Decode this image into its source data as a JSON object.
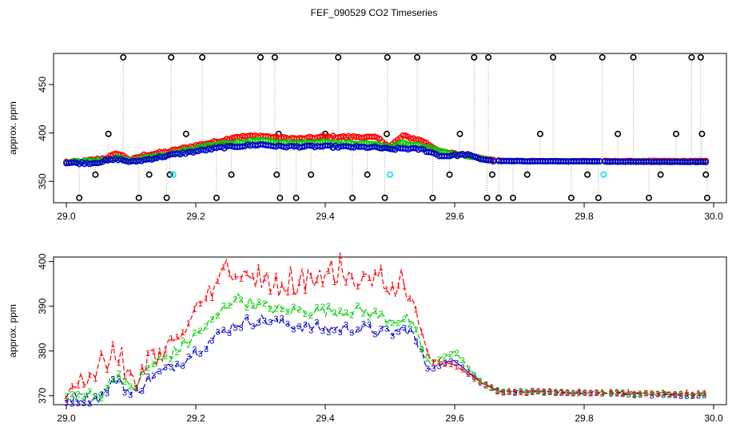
{
  "title": "FEF_090529  CO2 Timeseries",
  "colors": {
    "s1": "#ff0000",
    "s2": "#00cd00",
    "s3": "#0000cd",
    "outlier": "#000000",
    "flag": "#00e5ee",
    "dotline": "#a0a0a0"
  },
  "chart_data": [
    {
      "type": "scatter",
      "title": "",
      "xlabel": "",
      "ylabel": "approx. ppm",
      "xlim": [
        29.0,
        30.0
      ],
      "ylim": [
        328,
        482
      ],
      "xticks": [
        "29.0",
        "29.2",
        "29.4",
        "29.6",
        "29.8",
        "30.0"
      ],
      "xtick_values": [
        29.0,
        29.2,
        29.4,
        29.6,
        29.8,
        30.0
      ],
      "yticks": [
        "350",
        "400",
        "450"
      ],
      "ytick_values": [
        350,
        400,
        450
      ],
      "legend": "none",
      "series": [
        {
          "name": "1",
          "profile": [
            [
              29.0,
              370
            ],
            [
              29.02,
              370
            ],
            [
              29.06,
              374
            ],
            [
              29.08,
              379
            ],
            [
              29.1,
              372
            ],
            [
              29.12,
              377
            ],
            [
              29.16,
              381
            ],
            [
              29.2,
              387
            ],
            [
              29.24,
              392
            ],
            [
              29.26,
              396
            ],
            [
              29.3,
              397
            ],
            [
              29.33,
              395
            ],
            [
              29.36,
              394
            ],
            [
              29.4,
              396
            ],
            [
              29.45,
              396
            ],
            [
              29.48,
              395
            ],
            [
              29.5,
              386
            ],
            [
              29.52,
              397
            ],
            [
              29.55,
              392
            ],
            [
              29.58,
              380
            ],
            [
              29.62,
              377
            ],
            [
              29.66,
              372
            ],
            [
              29.68,
              371
            ],
            [
              30.0,
              371
            ]
          ]
        },
        {
          "name": "2",
          "profile": [
            [
              29.0,
              370
            ],
            [
              29.05,
              371
            ],
            [
              29.08,
              375
            ],
            [
              29.1,
              371
            ],
            [
              29.12,
              374
            ],
            [
              29.16,
              378
            ],
            [
              29.2,
              384
            ],
            [
              29.24,
              389
            ],
            [
              29.3,
              392
            ],
            [
              29.33,
              390
            ],
            [
              29.4,
              390
            ],
            [
              29.48,
              389
            ],
            [
              29.5,
              385
            ],
            [
              29.52,
              390
            ],
            [
              29.56,
              385
            ],
            [
              29.6,
              378
            ],
            [
              29.64,
              374
            ],
            [
              29.66,
              371
            ],
            [
              30.0,
              370
            ]
          ]
        },
        {
          "name": "3",
          "profile": [
            [
              29.0,
              369
            ],
            [
              29.04,
              369
            ],
            [
              29.08,
              373
            ],
            [
              29.1,
              370
            ],
            [
              29.12,
              372
            ],
            [
              29.16,
              377
            ],
            [
              29.2,
              381
            ],
            [
              29.24,
              385
            ],
            [
              29.3,
              388
            ],
            [
              29.33,
              386
            ],
            [
              29.4,
              386
            ],
            [
              29.48,
              385
            ],
            [
              29.5,
              383
            ],
            [
              29.52,
              384
            ],
            [
              29.55,
              383
            ],
            [
              29.58,
              376
            ],
            [
              29.62,
              378
            ],
            [
              29.64,
              373
            ],
            [
              29.66,
              371
            ],
            [
              30.0,
              370
            ]
          ]
        }
      ],
      "outliers_high": [
        29.088,
        29.162,
        29.21,
        29.3,
        29.322,
        29.42,
        29.496,
        29.542,
        29.63,
        29.652,
        29.752,
        29.828,
        29.876,
        29.966,
        29.98
      ],
      "outliers_low": [
        29.02,
        29.112,
        29.155,
        29.232,
        29.33,
        29.355,
        29.442,
        29.492,
        29.566,
        29.65,
        29.668,
        29.69,
        29.78,
        29.822,
        29.9,
        29.99
      ],
      "outliers_mid": [
        [
          29.045,
          357
        ],
        [
          29.065,
          399
        ],
        [
          29.128,
          357
        ],
        [
          29.16,
          357
        ],
        [
          29.185,
          399
        ],
        [
          29.255,
          357
        ],
        [
          29.325,
          357
        ],
        [
          29.328,
          399
        ],
        [
          29.378,
          357
        ],
        [
          29.4,
          399
        ],
        [
          29.465,
          357
        ],
        [
          29.495,
          399
        ],
        [
          29.592,
          357
        ],
        [
          29.608,
          399
        ],
        [
          29.658,
          357
        ],
        [
          29.712,
          357
        ],
        [
          29.732,
          399
        ],
        [
          29.805,
          357
        ],
        [
          29.852,
          399
        ],
        [
          29.918,
          357
        ],
        [
          29.942,
          399
        ],
        [
          29.982,
          399
        ],
        [
          29.988,
          357
        ]
      ],
      "flagged": [
        [
          29.165,
          357
        ],
        [
          29.5,
          357
        ],
        [
          29.83,
          357
        ]
      ]
    },
    {
      "type": "line",
      "title": "",
      "xlabel": "",
      "ylabel": "approx. ppm",
      "xlim": [
        29.0,
        30.0
      ],
      "ylim": [
        368,
        401
      ],
      "xticks": [
        "29.0",
        "29.2",
        "29.4",
        "29.6",
        "29.8",
        "30.0"
      ],
      "xtick_values": [
        29.0,
        29.2,
        29.4,
        29.6,
        29.8,
        30.0
      ],
      "yticks": [
        "370",
        "380",
        "390",
        "400"
      ],
      "ytick_values": [
        370,
        380,
        390,
        400
      ],
      "legend": "none",
      "series": [
        {
          "name": "1",
          "profile": [
            [
              29.0,
              371
            ],
            [
              29.03,
              372
            ],
            [
              29.06,
              376
            ],
            [
              29.08,
              378
            ],
            [
              29.1,
              372
            ],
            [
              29.12,
              377
            ],
            [
              29.15,
              380
            ],
            [
              29.18,
              385
            ],
            [
              29.22,
              391
            ],
            [
              29.24,
              396
            ],
            [
              29.28,
              397
            ],
            [
              29.33,
              394
            ],
            [
              29.37,
              394
            ],
            [
              29.42,
              396
            ],
            [
              29.47,
              395
            ],
            [
              29.5,
              392
            ],
            [
              29.53,
              394
            ],
            [
              29.56,
              378
            ],
            [
              29.6,
              377
            ],
            [
              29.64,
              373
            ],
            [
              29.67,
              371
            ],
            [
              30.0,
              370.5
            ]
          ]
        },
        {
          "name": "2",
          "profile": [
            [
              29.0,
              370
            ],
            [
              29.05,
              370
            ],
            [
              29.08,
              375
            ],
            [
              29.1,
              371
            ],
            [
              29.13,
              377
            ],
            [
              29.17,
              380
            ],
            [
              29.22,
              386
            ],
            [
              29.26,
              392
            ],
            [
              29.3,
              390
            ],
            [
              29.34,
              389
            ],
            [
              29.4,
              389
            ],
            [
              29.46,
              389
            ],
            [
              29.5,
              387
            ],
            [
              29.53,
              387
            ],
            [
              29.56,
              377
            ],
            [
              29.6,
              380
            ],
            [
              29.64,
              373
            ],
            [
              29.67,
              371
            ],
            [
              30.0,
              370.3
            ]
          ]
        },
        {
          "name": "3",
          "profile": [
            [
              29.0,
              369.5
            ],
            [
              29.05,
              369.5
            ],
            [
              29.08,
              374
            ],
            [
              29.1,
              370
            ],
            [
              29.13,
              374
            ],
            [
              29.17,
              377
            ],
            [
              29.22,
              382
            ],
            [
              29.26,
              386
            ],
            [
              29.3,
              387
            ],
            [
              29.34,
              386
            ],
            [
              29.4,
              385
            ],
            [
              29.46,
              385
            ],
            [
              29.5,
              384
            ],
            [
              29.53,
              385
            ],
            [
              29.56,
              376
            ],
            [
              29.6,
              378
            ],
            [
              29.64,
              373
            ],
            [
              29.67,
              371
            ],
            [
              30.0,
              370
            ]
          ]
        }
      ]
    }
  ]
}
